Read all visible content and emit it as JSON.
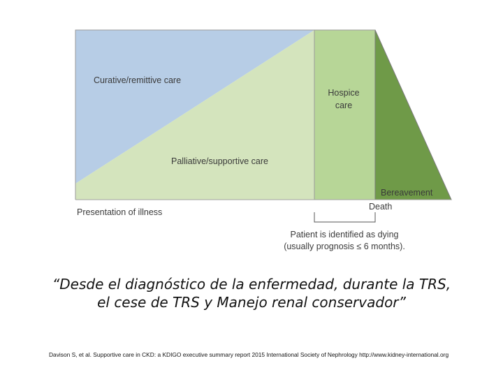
{
  "diagram": {
    "labels": {
      "curative": "Curative/remittive care",
      "palliative": "Palliative/supportive care",
      "hospice_line1": "Hospice",
      "hospice_line2": "care",
      "bereavement": "Bereavement",
      "presentation": "Presentation of illness",
      "death": "Death",
      "patient_line1": "Patient is identified as dying",
      "patient_line2": "(usually prognosis ≤ 6 months)."
    },
    "colors": {
      "curative": "#b7cde6",
      "palliative": "#d4e4bd",
      "hospice": "#b7d697",
      "bereavement": "#6f9a48",
      "border": "#8a8a8a"
    }
  },
  "quote": {
    "line1": "“Desde el diagnóstico de la enfermedad, durante la TRS,",
    "line2": "el cese de TRS y Manejo renal conservador”"
  },
  "citation": "Davison S, et al. Supportive care in CKD: a KDIGO executive summary report 2015 International Society of Nephrology http://www.kidney-international.org"
}
